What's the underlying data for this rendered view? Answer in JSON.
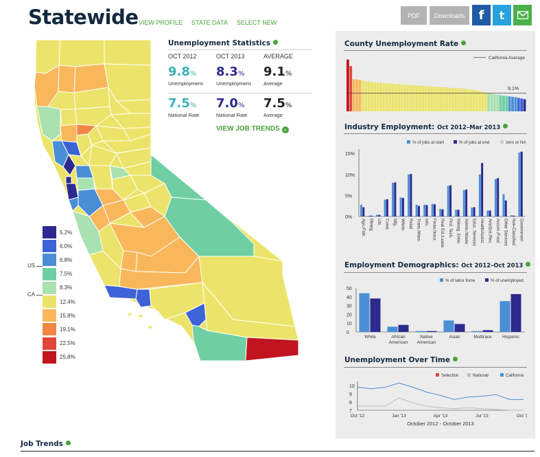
{
  "header": {
    "title": "Statewide",
    "nav": [
      "VIEW PROFILE",
      "STATE DATA",
      "SELECT NEW"
    ],
    "buttons": {
      "pdf": "PDF",
      "downloads": "Downloads"
    },
    "social": [
      {
        "name": "facebook",
        "glyph": "f",
        "color": "#1f5aa5"
      },
      {
        "name": "twitter",
        "glyph": "t",
        "color": "#27a2dc"
      },
      {
        "name": "email",
        "glyph": "✉",
        "color": "#4ab14b"
      }
    ]
  },
  "map": {
    "legend": [
      {
        "label": "5.2%",
        "color": "#2d2a8f"
      },
      {
        "label": "6.0%",
        "color": "#3e63d6"
      },
      {
        "label": "6.8%",
        "color": "#4a8fd6"
      },
      {
        "label": "7.5%",
        "color": "#6fcfa3"
      },
      {
        "label": "8.3%",
        "color": "#a9e1b0"
      },
      {
        "label": "12.4%",
        "color": "#ece46a"
      },
      {
        "label": "15.8%",
        "color": "#f9b75c"
      },
      {
        "label": "19.1%",
        "color": "#f18642"
      },
      {
        "label": "22.5%",
        "color": "#e0473a"
      },
      {
        "label": "25.8%",
        "color": "#c0141f"
      }
    ],
    "markers": [
      "US",
      "CA"
    ]
  },
  "unemployment_stats": {
    "title": "Unemployment Statistics",
    "columns": [
      {
        "period": "OCT 2012",
        "rate": "9.8",
        "rate_label": "Unemployment",
        "national": "7.5",
        "national_label": "National Rate",
        "color": "#3bb0b8"
      },
      {
        "period": "OCT 2013",
        "rate": "8.3",
        "rate_label": "Unemployment",
        "national": "7.0",
        "national_label": "National Rate",
        "color": "#2d2a8f"
      },
      {
        "period": "AVERAGE",
        "rate": "9.1",
        "rate_label": "Average",
        "national": "7.5",
        "national_label": "Average",
        "color": "#222222"
      }
    ],
    "unit": "%",
    "link": "VIEW JOB TRENDS"
  },
  "county_chart": {
    "title": "County Unemployment Rate",
    "legend": "California Average",
    "average_label": "9.1%"
  },
  "industry_chart": {
    "title": "Industry Employment:",
    "subtitle": "Oct 2012–Mar 2013",
    "legend": [
      "% of jobs at start",
      "% of jobs at end",
      "zero or NA"
    ],
    "y_ticks": [
      "15%",
      "10%",
      "5%",
      "0%"
    ]
  },
  "demographics_chart": {
    "title": "Employment Demographics:",
    "subtitle": "Oct 2012–Oct 2013",
    "legend": [
      "% of labor force",
      "% of unemployed"
    ],
    "y_ticks": [
      "50",
      "40",
      "30",
      "20",
      "10",
      "0"
    ]
  },
  "time_chart": {
    "title": "Unemployment Over Time",
    "legend": [
      "Selection",
      "National",
      "California"
    ],
    "y_ticks": [
      "10",
      "9",
      "8",
      "7"
    ],
    "x_ticks": [
      "Oct '12",
      "Jan '13",
      "Apr '13",
      "Jul '13",
      "Oct '13"
    ],
    "caption": "October 2012 - October 2013"
  },
  "footer": {
    "job_trends": "Job Trends"
  },
  "chart_data": [
    {
      "type": "bar",
      "title": "County Unemployment Rate",
      "reference_line": 9.1,
      "values": [
        25.8,
        22.5,
        16.0,
        15.9,
        15.6,
        15.3,
        15.0,
        14.8,
        14.6,
        14.4,
        14.3,
        14.2,
        14.0,
        13.9,
        13.8,
        13.7,
        13.6,
        13.5,
        13.4,
        13.3,
        13.2,
        13.1,
        13.0,
        12.9,
        12.8,
        12.7,
        12.6,
        12.5,
        12.4,
        12.3,
        12.2,
        12.1,
        12.0,
        11.9,
        11.8,
        11.7,
        11.6,
        11.5,
        11.4,
        11.2,
        11.0,
        10.8,
        10.6,
        10.4,
        10.1,
        9.8,
        9.5,
        9.2,
        8.9,
        8.6,
        8.3,
        8.0,
        7.8,
        7.6,
        7.4,
        7.2,
        7.0,
        6.7,
        6.4,
        6.0
      ],
      "ylim": [
        0,
        26
      ]
    },
    {
      "type": "bar",
      "title": "Industry Employment:",
      "categories": [
        "Agri./Fish.",
        "Mining",
        "Util.",
        "Const.",
        "Mfg.",
        "Whole.",
        "Retail",
        "Trans./Ware.",
        "Info.",
        "Finan./Insur.",
        "Real Est./Lease",
        "Prof. Tech.",
        "Manag. Enter.",
        "Admin./Waste",
        "Educ. Services",
        "Health/Assist.",
        "Arts/Ent./Rec.",
        "Accom./Food",
        "Other Services",
        "Non-Classified",
        "Government"
      ],
      "series": [
        {
          "name": "% of jobs at start",
          "values": [
            2.8,
            0.2,
            0.4,
            4.0,
            8.0,
            4.5,
            10.0,
            2.8,
            2.8,
            3.0,
            1.8,
            7.3,
            1.6,
            6.3,
            2.1,
            10.0,
            1.4,
            8.9,
            5.3,
            0.3,
            15.2
          ]
        },
        {
          "name": "% of jobs at end",
          "values": [
            2.2,
            0.2,
            0.4,
            4.1,
            8.1,
            4.4,
            10.1,
            2.5,
            2.7,
            2.9,
            1.7,
            7.4,
            1.6,
            6.4,
            2.2,
            12.7,
            1.4,
            9.1,
            3.8,
            0.2,
            15.4
          ]
        }
      ],
      "ylim": [
        0,
        16
      ]
    },
    {
      "type": "bar",
      "title": "Employment Demographics:",
      "categories": [
        "White",
        "African American",
        "Native American",
        "Asian",
        "Multirace",
        "Hispanic"
      ],
      "series": [
        {
          "name": "% of labor force",
          "values": [
            44,
            6,
            1,
            13,
            1,
            35
          ]
        },
        {
          "name": "% of unemployed",
          "values": [
            38,
            8,
            1,
            9,
            2,
            43
          ]
        }
      ],
      "ylim": [
        0,
        50
      ]
    },
    {
      "type": "line",
      "title": "Unemployment Over Time",
      "x": [
        "Oct '12",
        "Nov '12",
        "Dec '12",
        "Jan '13",
        "Feb '13",
        "Mar '13",
        "Apr '13",
        "May '13",
        "Jun '13",
        "Jul '13",
        "Aug '13",
        "Sep '13",
        "Oct '13"
      ],
      "series": [
        {
          "name": "California",
          "values": [
            9.8,
            9.6,
            9.8,
            10.3,
            9.8,
            9.2,
            8.8,
            8.3,
            8.6,
            8.7,
            8.9,
            8.3,
            8.3
          ]
        },
        {
          "name": "National",
          "values": [
            7.5,
            7.5,
            7.5,
            8.5,
            7.9,
            7.5,
            7.3,
            7.2,
            7.3,
            7.2,
            7.1,
            7.0,
            7.0
          ]
        }
      ],
      "ylim": [
        7,
        10.5
      ]
    }
  ]
}
